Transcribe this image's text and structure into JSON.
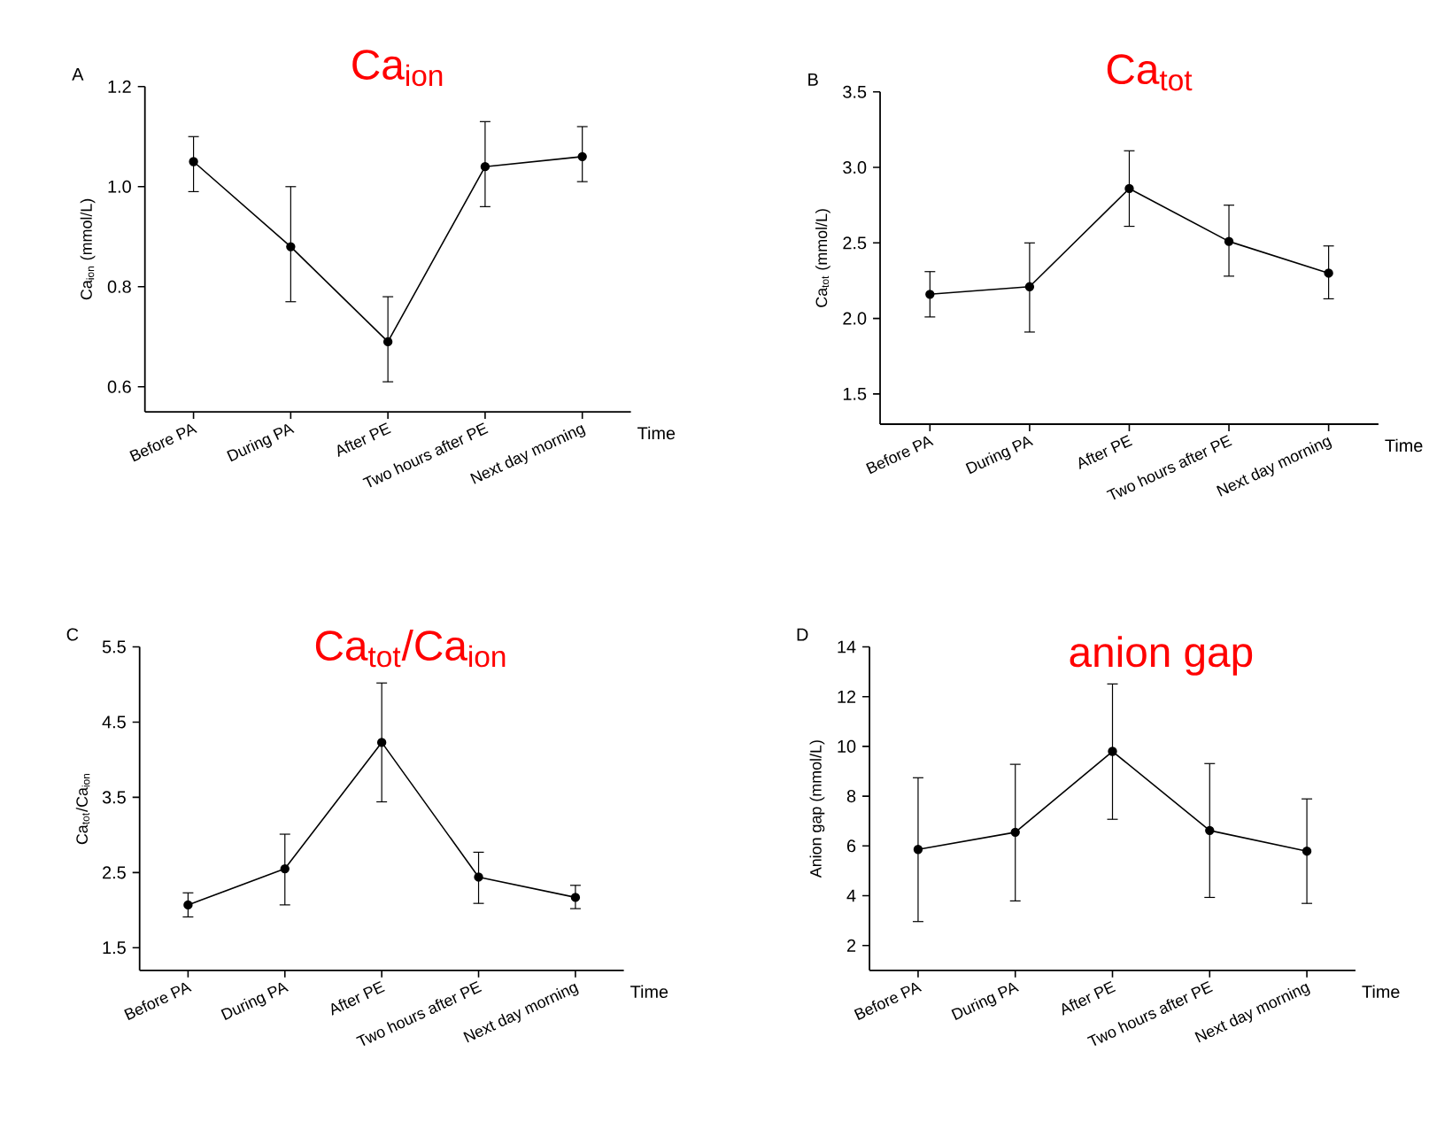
{
  "chart_data": [
    {
      "type": "line",
      "title": "Ca$_{ion}$",
      "ylabel": "Ca$_{ion}$  (mmol/L)",
      "xlabel": "Time",
      "annotations": [
        "A"
      ],
      "categories": [
        "Before PA",
        "During PA",
        "After PE",
        "Two hours after PE",
        "Next day morning"
      ],
      "values": [
        1.05,
        0.88,
        0.69,
        1.04,
        1.06
      ],
      "errors": [
        [
          0.99,
          1.1
        ],
        [
          0.77,
          1.0
        ],
        [
          0.61,
          0.78
        ],
        [
          0.96,
          1.13
        ],
        [
          1.01,
          1.12
        ]
      ],
      "color": "#000000",
      "marker": "circle",
      "ylim": [
        0.55,
        1.2
      ],
      "yticks": [
        0.6,
        0.8,
        {
          "value": 1,
          "label": "1.0"
        },
        1.2
      ]
    },
    {
      "type": "line",
      "title": "Ca$_{tot}$",
      "ylabel": "Ca$_{tot}$ (mmol/L)",
      "xlabel": "Time",
      "annotations": [
        "B"
      ],
      "categories": [
        "Before PA",
        "During PA",
        "After PE",
        "Two hours after PE",
        "Next day morning"
      ],
      "values": [
        2.16,
        2.21,
        2.86,
        2.51,
        2.3
      ],
      "errors": [
        [
          2.01,
          2.31
        ],
        [
          1.91,
          2.5
        ],
        [
          2.61,
          3.11
        ],
        [
          2.28,
          2.75
        ],
        [
          2.13,
          2.48
        ]
      ],
      "color": "#000000",
      "marker": "circle",
      "ylim": [
        1.3,
        3.5
      ],
      "yticks": [
        1.5,
        {
          "value": 2,
          "label": "2.0"
        },
        2.5,
        {
          "value": 3,
          "label": "3.0"
        },
        3.5
      ]
    },
    {
      "type": "line",
      "title": "Ca$_{tot}$/Ca$_{ion}$",
      "ylabel": "Ca$_{tot}$/Ca$_{ion}$",
      "xlabel": "Time",
      "annotations": [
        "C"
      ],
      "categories": [
        "Before PA",
        "During PA",
        "After PE",
        "Two hours after PE",
        "Next day morning"
      ],
      "values": [
        2.07,
        2.55,
        4.23,
        2.44,
        2.17
      ],
      "errors": [
        [
          1.91,
          2.23
        ],
        [
          2.07,
          3.01
        ],
        [
          3.44,
          5.02
        ],
        [
          2.09,
          2.77
        ],
        [
          2.02,
          2.33
        ]
      ],
      "color": "#000000",
      "marker": "circle",
      "ylim": [
        1.2,
        5.5
      ],
      "yticks": [
        1.5,
        2.5,
        3.5,
        4.5,
        5.5
      ]
    },
    {
      "type": "line",
      "title": "anion gap",
      "ylabel": "Anion gap (mmol/L)",
      "xlabel": "Time",
      "annotations": [
        "D"
      ],
      "categories": [
        "Before PA",
        "During PA",
        "After PE",
        "Two hours after PE",
        "Next day morning"
      ],
      "values": [
        5.86,
        6.55,
        9.8,
        6.62,
        5.79
      ],
      "errors": [
        [
          2.96,
          8.74
        ],
        [
          3.79,
          9.28
        ],
        [
          7.07,
          12.51
        ],
        [
          3.93,
          9.31
        ],
        [
          3.69,
          7.89
        ]
      ],
      "color": "#000000",
      "marker": "circle",
      "ylim": [
        1,
        14
      ],
      "yticks": [
        2,
        4,
        6,
        8,
        10,
        12,
        14
      ]
    }
  ]
}
